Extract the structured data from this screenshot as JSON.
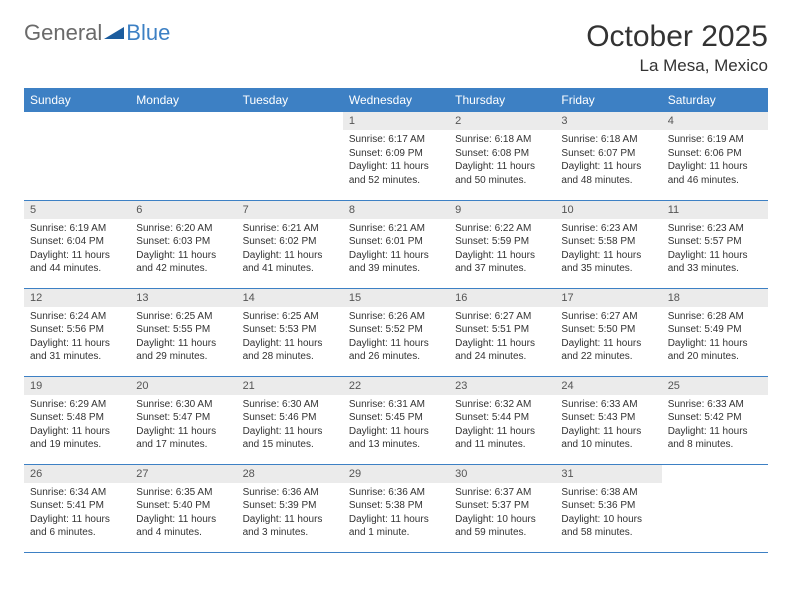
{
  "logo": {
    "text1": "General",
    "text2": "Blue"
  },
  "title": "October 2025",
  "location": "La Mesa, Mexico",
  "colors": {
    "header_bg": "#3d80c4",
    "daynum_bg": "#ebebeb",
    "border": "#3d80c4"
  },
  "weekdays": [
    "Sunday",
    "Monday",
    "Tuesday",
    "Wednesday",
    "Thursday",
    "Friday",
    "Saturday"
  ],
  "weeks": [
    [
      {
        "n": "",
        "t": ""
      },
      {
        "n": "",
        "t": ""
      },
      {
        "n": "",
        "t": ""
      },
      {
        "n": "1",
        "t": "Sunrise: 6:17 AM\nSunset: 6:09 PM\nDaylight: 11 hours and 52 minutes."
      },
      {
        "n": "2",
        "t": "Sunrise: 6:18 AM\nSunset: 6:08 PM\nDaylight: 11 hours and 50 minutes."
      },
      {
        "n": "3",
        "t": "Sunrise: 6:18 AM\nSunset: 6:07 PM\nDaylight: 11 hours and 48 minutes."
      },
      {
        "n": "4",
        "t": "Sunrise: 6:19 AM\nSunset: 6:06 PM\nDaylight: 11 hours and 46 minutes."
      }
    ],
    [
      {
        "n": "5",
        "t": "Sunrise: 6:19 AM\nSunset: 6:04 PM\nDaylight: 11 hours and 44 minutes."
      },
      {
        "n": "6",
        "t": "Sunrise: 6:20 AM\nSunset: 6:03 PM\nDaylight: 11 hours and 42 minutes."
      },
      {
        "n": "7",
        "t": "Sunrise: 6:21 AM\nSunset: 6:02 PM\nDaylight: 11 hours and 41 minutes."
      },
      {
        "n": "8",
        "t": "Sunrise: 6:21 AM\nSunset: 6:01 PM\nDaylight: 11 hours and 39 minutes."
      },
      {
        "n": "9",
        "t": "Sunrise: 6:22 AM\nSunset: 5:59 PM\nDaylight: 11 hours and 37 minutes."
      },
      {
        "n": "10",
        "t": "Sunrise: 6:23 AM\nSunset: 5:58 PM\nDaylight: 11 hours and 35 minutes."
      },
      {
        "n": "11",
        "t": "Sunrise: 6:23 AM\nSunset: 5:57 PM\nDaylight: 11 hours and 33 minutes."
      }
    ],
    [
      {
        "n": "12",
        "t": "Sunrise: 6:24 AM\nSunset: 5:56 PM\nDaylight: 11 hours and 31 minutes."
      },
      {
        "n": "13",
        "t": "Sunrise: 6:25 AM\nSunset: 5:55 PM\nDaylight: 11 hours and 29 minutes."
      },
      {
        "n": "14",
        "t": "Sunrise: 6:25 AM\nSunset: 5:53 PM\nDaylight: 11 hours and 28 minutes."
      },
      {
        "n": "15",
        "t": "Sunrise: 6:26 AM\nSunset: 5:52 PM\nDaylight: 11 hours and 26 minutes."
      },
      {
        "n": "16",
        "t": "Sunrise: 6:27 AM\nSunset: 5:51 PM\nDaylight: 11 hours and 24 minutes."
      },
      {
        "n": "17",
        "t": "Sunrise: 6:27 AM\nSunset: 5:50 PM\nDaylight: 11 hours and 22 minutes."
      },
      {
        "n": "18",
        "t": "Sunrise: 6:28 AM\nSunset: 5:49 PM\nDaylight: 11 hours and 20 minutes."
      }
    ],
    [
      {
        "n": "19",
        "t": "Sunrise: 6:29 AM\nSunset: 5:48 PM\nDaylight: 11 hours and 19 minutes."
      },
      {
        "n": "20",
        "t": "Sunrise: 6:30 AM\nSunset: 5:47 PM\nDaylight: 11 hours and 17 minutes."
      },
      {
        "n": "21",
        "t": "Sunrise: 6:30 AM\nSunset: 5:46 PM\nDaylight: 11 hours and 15 minutes."
      },
      {
        "n": "22",
        "t": "Sunrise: 6:31 AM\nSunset: 5:45 PM\nDaylight: 11 hours and 13 minutes."
      },
      {
        "n": "23",
        "t": "Sunrise: 6:32 AM\nSunset: 5:44 PM\nDaylight: 11 hours and 11 minutes."
      },
      {
        "n": "24",
        "t": "Sunrise: 6:33 AM\nSunset: 5:43 PM\nDaylight: 11 hours and 10 minutes."
      },
      {
        "n": "25",
        "t": "Sunrise: 6:33 AM\nSunset: 5:42 PM\nDaylight: 11 hours and 8 minutes."
      }
    ],
    [
      {
        "n": "26",
        "t": "Sunrise: 6:34 AM\nSunset: 5:41 PM\nDaylight: 11 hours and 6 minutes."
      },
      {
        "n": "27",
        "t": "Sunrise: 6:35 AM\nSunset: 5:40 PM\nDaylight: 11 hours and 4 minutes."
      },
      {
        "n": "28",
        "t": "Sunrise: 6:36 AM\nSunset: 5:39 PM\nDaylight: 11 hours and 3 minutes."
      },
      {
        "n": "29",
        "t": "Sunrise: 6:36 AM\nSunset: 5:38 PM\nDaylight: 11 hours and 1 minute."
      },
      {
        "n": "30",
        "t": "Sunrise: 6:37 AM\nSunset: 5:37 PM\nDaylight: 10 hours and 59 minutes."
      },
      {
        "n": "31",
        "t": "Sunrise: 6:38 AM\nSunset: 5:36 PM\nDaylight: 10 hours and 58 minutes."
      },
      {
        "n": "",
        "t": ""
      }
    ]
  ]
}
